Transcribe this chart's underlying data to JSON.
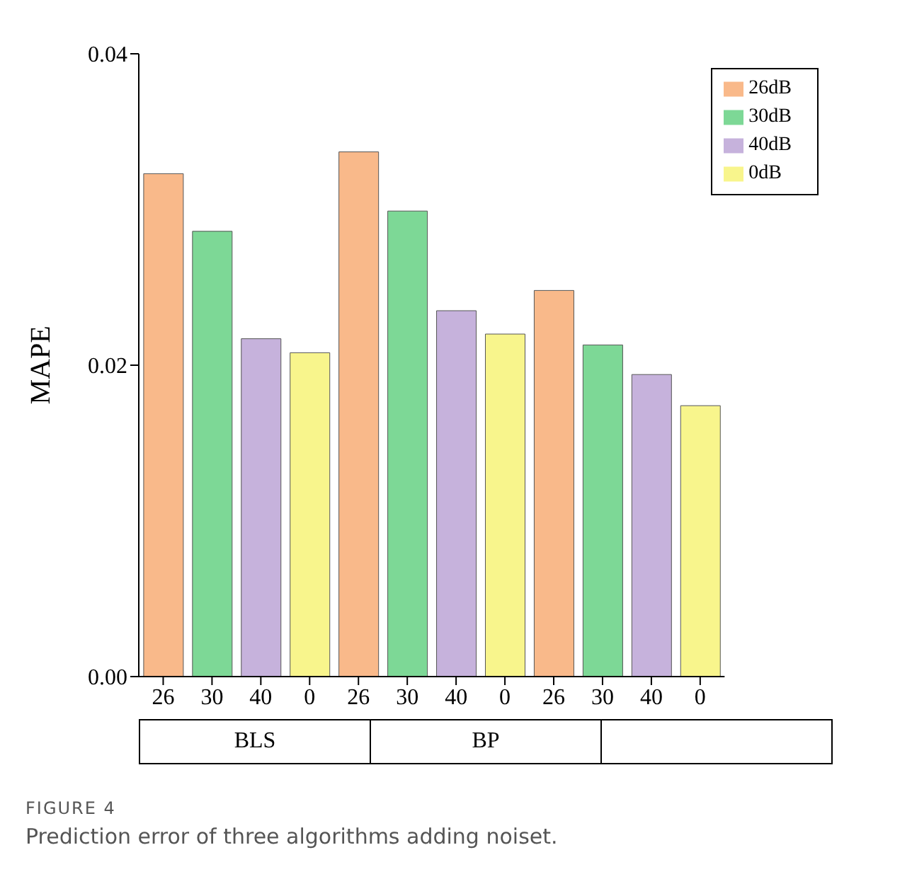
{
  "chart_data": {
    "type": "bar",
    "stacked": true,
    "ylabel": "MAPE",
    "categories": [
      "26",
      "30",
      "40",
      "0",
      "26",
      "30",
      "40",
      "0",
      "26",
      "30",
      "40",
      "0"
    ],
    "series": [
      {
        "name": "26dB",
        "color": "#f9b98a",
        "values": [
          0.0323,
          null,
          null,
          null,
          0.0337,
          null,
          null,
          null,
          0.0248,
          null,
          null,
          null
        ]
      },
      {
        "name": "30dB",
        "color": "#7dd896",
        "values": [
          null,
          0.0286,
          null,
          null,
          null,
          0.0299,
          null,
          null,
          null,
          0.0213,
          null,
          null
        ]
      },
      {
        "name": "40dB",
        "color": "#c6b2dc",
        "values": [
          null,
          null,
          0.0217,
          null,
          null,
          null,
          0.0235,
          null,
          null,
          null,
          0.0194,
          null
        ]
      },
      {
        "name": "0dB",
        "color": "#f8f58c",
        "values": [
          null,
          null,
          null,
          0.0208,
          null,
          null,
          null,
          0.022,
          null,
          null,
          null,
          0.0174
        ]
      }
    ],
    "ylim": [
      0,
      0.04
    ],
    "yticks": [
      {
        "value": 0,
        "label": "0.00"
      },
      {
        "value": 0.02,
        "label": "0.02"
      },
      {
        "value": 0.04,
        "label": "0.04"
      }
    ],
    "grid": false,
    "legend": "top right",
    "annotations": [
      "BLS",
      "BP",
      "FIGURE 4",
      "Prediction error of three algorithms adding noiset."
    ]
  }
}
